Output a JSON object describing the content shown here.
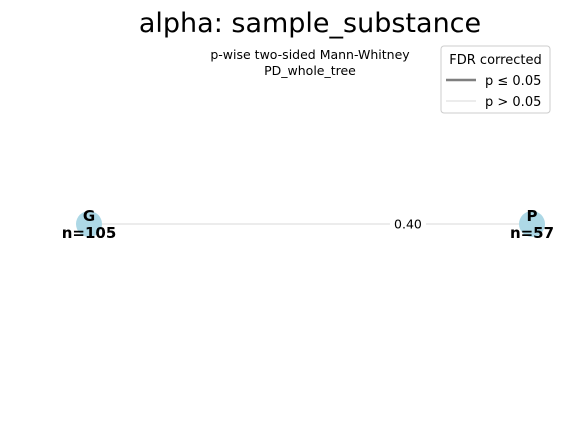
{
  "chart_data": {
    "type": "network",
    "title": "alpha: sample_substance",
    "subtitle_lines": [
      "p-wise two-sided Mann-Whitney",
      "PD_whole_tree"
    ],
    "nodes": [
      {
        "label": "G",
        "count_label": "n=105",
        "n": 105
      },
      {
        "label": "P",
        "count_label": "n=57",
        "n": 57
      }
    ],
    "edges": [
      {
        "from": "G",
        "to": "P",
        "p_value": 0.4,
        "label": "0.40",
        "significant": false
      }
    ],
    "legend": {
      "title": "FDR corrected",
      "position": "top-right",
      "items": [
        {
          "label": "p ≤ 0.05",
          "color": "#7f7f7f"
        },
        {
          "label": "p > 0.05",
          "color": "#e6e6e6"
        }
      ]
    },
    "colors": {
      "node": "#add8e6",
      "edge_nonsignificant": "#d9d9d9",
      "edge_significant": "#7f7f7f"
    }
  }
}
